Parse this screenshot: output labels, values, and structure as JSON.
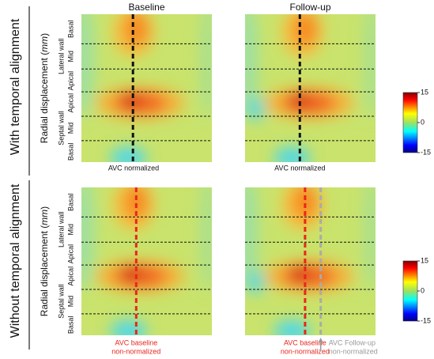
{
  "columns": [
    "Baseline",
    "Follow-up"
  ],
  "rows": [
    "With temporal alignment",
    "Without temporal alignment"
  ],
  "y_axis_label": {
    "prefix": "Radial displacement (",
    "unit": "mm",
    "suffix": ")"
  },
  "wall_labels": [
    "Lateral wall",
    "Septal wall"
  ],
  "segment_labels": [
    "Basal",
    "Mid",
    "Apical",
    "Apical",
    "Mid",
    "Basal"
  ],
  "annotations": {
    "top": [
      "AVC normalized",
      "AVC normalized"
    ],
    "bottom_baseline": [
      "AVC baseline",
      "non-normalized"
    ],
    "bottom_followup": [
      "AVC Follow-up",
      "non-normalized"
    ]
  },
  "colorbar_ticks": [
    15,
    0,
    -15
  ]
}
